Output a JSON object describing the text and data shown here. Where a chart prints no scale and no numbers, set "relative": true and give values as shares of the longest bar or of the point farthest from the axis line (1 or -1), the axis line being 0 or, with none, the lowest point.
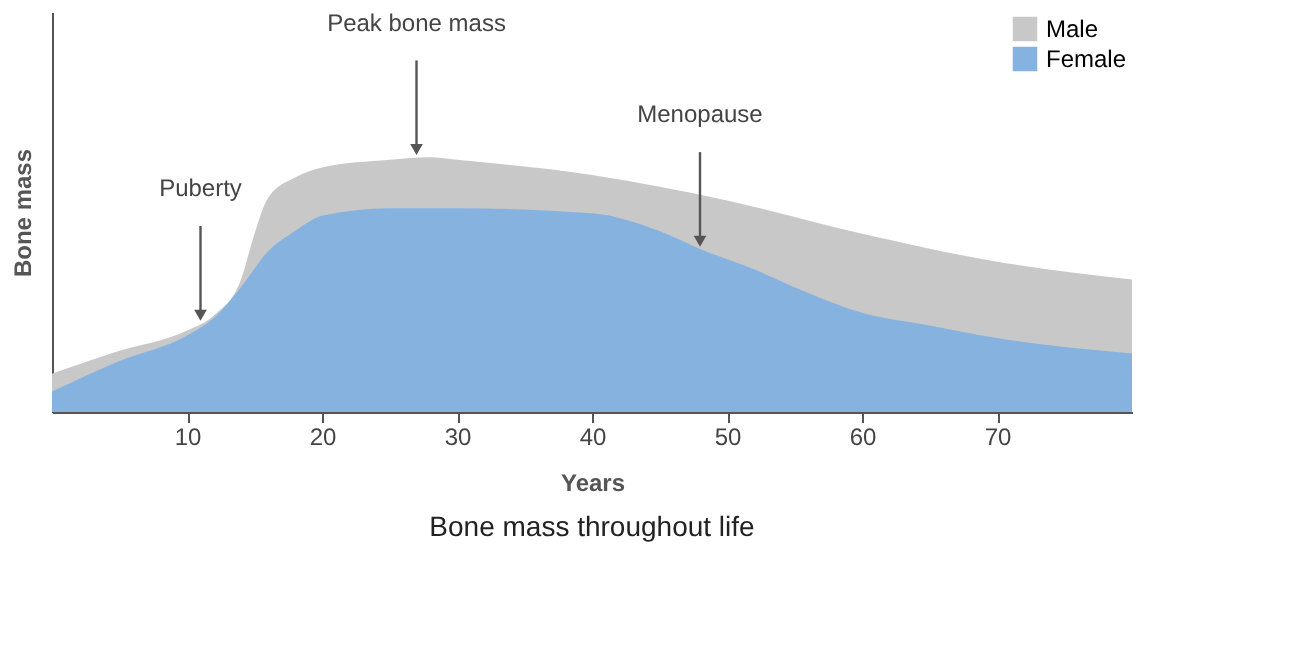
{
  "chart_data": {
    "type": "area",
    "title": "Bone mass throughout life",
    "xlabel": "Years",
    "ylabel": "Bone mass",
    "relative": true,
    "xlim": [
      0,
      80
    ],
    "xticks": [
      10,
      20,
      30,
      40,
      50,
      60,
      70
    ],
    "grid": false,
    "legend": "top right",
    "series": [
      {
        "name": "Male",
        "color": "#c8c8c8",
        "x": [
          0,
          5,
          10,
          12,
          14,
          15,
          16,
          18,
          20,
          25,
          28,
          30,
          40,
          50,
          60,
          70,
          80
        ],
        "values": [
          0.15,
          0.24,
          0.32,
          0.38,
          0.52,
          0.7,
          0.84,
          0.92,
          0.96,
          0.99,
          1,
          0.99,
          0.93,
          0.83,
          0.7,
          0.59,
          0.52
        ]
      },
      {
        "name": "Female",
        "color": "#86b2e0",
        "x": [
          0,
          5,
          10,
          12,
          14,
          16,
          18,
          20,
          25,
          30,
          40,
          45,
          48,
          52,
          55,
          60,
          65,
          70,
          80
        ],
        "values": [
          0.08,
          0.2,
          0.3,
          0.37,
          0.49,
          0.63,
          0.71,
          0.77,
          0.8,
          0.8,
          0.78,
          0.71,
          0.64,
          0.56,
          0.49,
          0.39,
          0.34,
          0.29,
          0.23
        ]
      }
    ],
    "annotations": [
      {
        "text": "Puberty",
        "x": 11,
        "y": 0.35
      },
      {
        "text": "Peak bone mass",
        "x": 27,
        "y": 1
      },
      {
        "text": "Menopause",
        "x": 48,
        "y": 0.64
      }
    ]
  }
}
